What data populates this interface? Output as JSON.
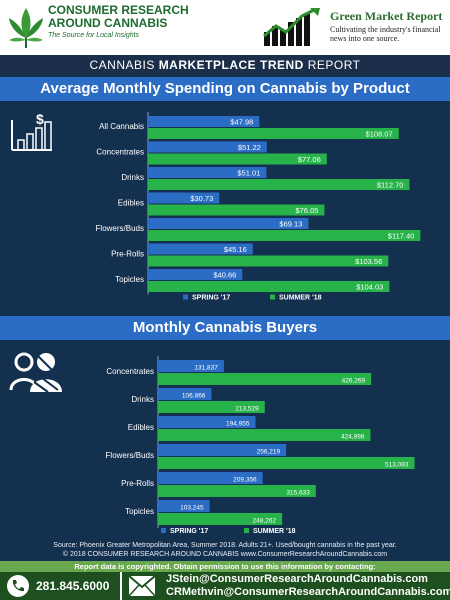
{
  "header": {
    "left_logo": {
      "line1": "CONSUMER RESEARCH",
      "line2": "AROUND CANNABIS",
      "tagline": "The Source for Local Insights"
    },
    "right_logo": {
      "title": "Green Market Report",
      "tagline": "Cultivating the industry's financial news into one source."
    }
  },
  "banner": {
    "prefix": "CANNABIS ",
    "bold": "MARKETPLACE TREND",
    "suffix": " REPORT"
  },
  "colors": {
    "spring": "#2b6cc4",
    "summer": "#27b24a",
    "header_bar": "#2b6cc4",
    "background": "#14304f"
  },
  "chart_data": [
    {
      "type": "bar",
      "orientation": "horizontal",
      "title": "Average Monthly Spending on Cannabis by Product",
      "categories": [
        "All Cannabis",
        "Concentrates",
        "Drinks",
        "Edibles",
        "Flowers/Buds",
        "Pre-Rolls",
        "Topicles"
      ],
      "series": [
        {
          "name": "SPRING '17",
          "values": [
            47.98,
            51.22,
            51.01,
            30.73,
            69.13,
            45.16,
            40.66
          ],
          "labels": [
            "$47.98",
            "$51.22",
            "$51.01",
            "$30.73",
            "$69.13",
            "$45.16",
            "$40.66"
          ]
        },
        {
          "name": "SUMMER '18",
          "values": [
            108.07,
            77.06,
            112.7,
            76.05,
            117.4,
            103.56,
            104.03
          ],
          "labels": [
            "$108.07",
            "$77.06",
            "$112.70",
            "$76.05",
            "$117.40",
            "$103.56",
            "$104.03"
          ]
        }
      ],
      "xlim": [
        0,
        125
      ],
      "legend": "bottom"
    },
    {
      "type": "bar",
      "orientation": "horizontal",
      "title": "Monthly Cannabis Buyers",
      "categories": [
        "Concentrates",
        "Drinks",
        "Edibles",
        "Flowers/Buds",
        "Pre-Rolls",
        "Topicles"
      ],
      "series": [
        {
          "name": "SPRING '17",
          "values": [
            131837,
            106866,
            194955,
            256219,
            209356,
            103245
          ],
          "labels": [
            "131,837",
            "106,866",
            "194,955",
            "256,219",
            "209,356",
            "103,245"
          ]
        },
        {
          "name": "SUMMER '18",
          "values": [
            426269,
            213529,
            424898,
            513083,
            315633,
            248262
          ],
          "labels": [
            "426,269",
            "213,529",
            "424,898",
            "513,083",
            "315,633",
            "248,262"
          ]
        }
      ],
      "xlim": [
        0,
        540000
      ],
      "legend": "bottom"
    }
  ],
  "footer": {
    "source_line1": "Source: Phoenix Greater Metropolitan Area, Summer 2018. Adults 21+. Used/bought cannabis in the past year.",
    "source_line2": "© 2018 CONSUMER RESEARCH AROUND CANNABIS  www.ConsumerResearchAroundCannabis.com",
    "copyright": "Report data is copyrighted.  Obtain permission to use this information by contacting:",
    "phone": "281.845.6000",
    "email1": "JStein@ConsumerResearchAroundCannabis.com",
    "email2": "CRMethvin@ConsumerResearchAroundCannabis.com"
  }
}
